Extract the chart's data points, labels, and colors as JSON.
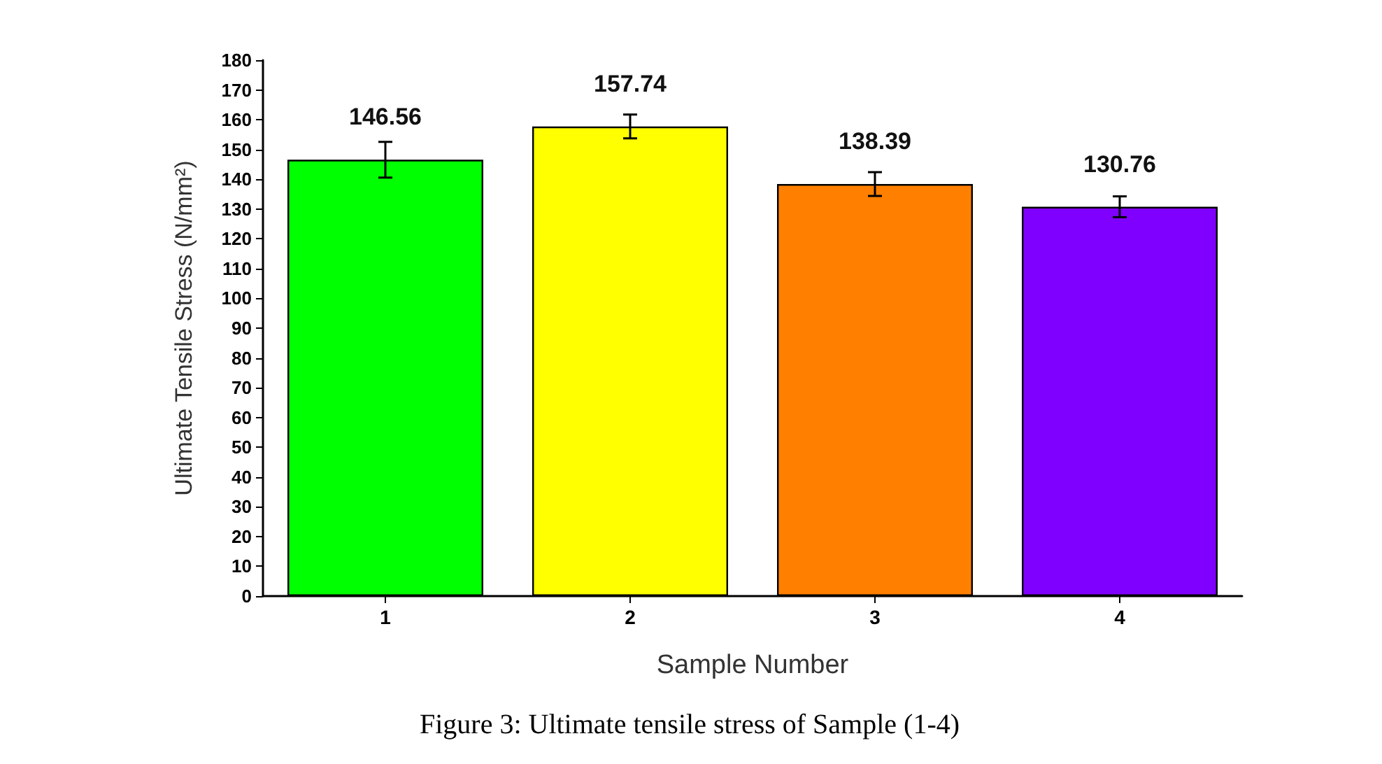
{
  "chart_data": {
    "type": "bar",
    "xlabel": "Sample Number",
    "ylabel": "Ultimate Tensile Stress (N/mm²)",
    "categories": [
      "1",
      "2",
      "3",
      "4"
    ],
    "values": [
      146.56,
      157.74,
      138.39,
      130.76
    ],
    "colors": [
      "#00ff00",
      "#ffff00",
      "#ff8000",
      "#8000ff"
    ],
    "errors": [
      6,
      4,
      4,
      3.5
    ],
    "data_labels": true,
    "ylim": [
      0,
      180
    ],
    "yticks": [
      0,
      10,
      20,
      30,
      40,
      50,
      60,
      70,
      80,
      90,
      100,
      110,
      120,
      130,
      140,
      150,
      160,
      170,
      180
    ],
    "annotations": [
      "Figure 3: Ultimate tensile stress of Sample (1-4)"
    ]
  }
}
